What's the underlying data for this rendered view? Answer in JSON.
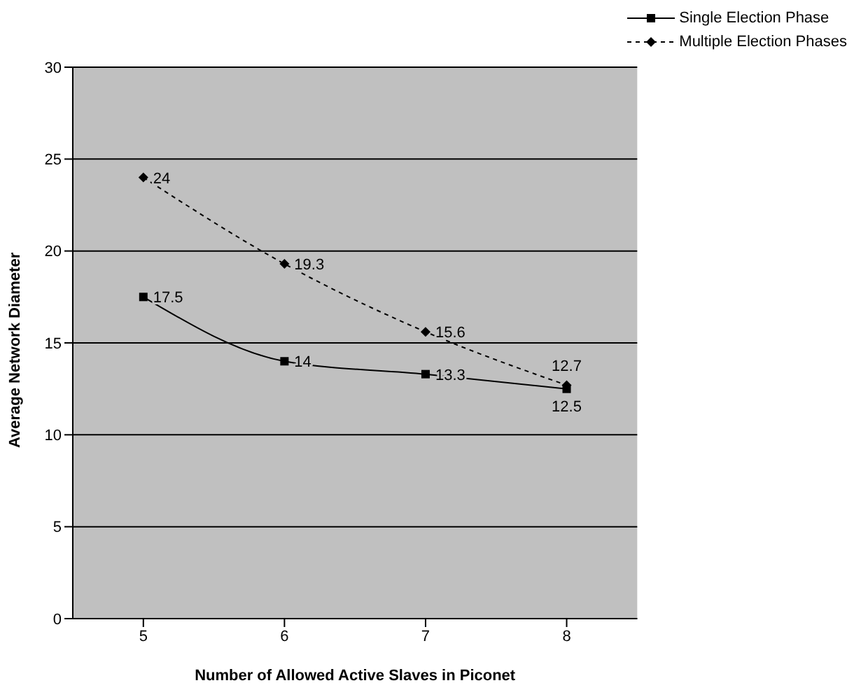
{
  "chart_data": {
    "type": "line",
    "xlabel": "Number of Allowed Active Slaves in Piconet",
    "ylabel": "Average Network Diameter",
    "categories": [
      "5",
      "6",
      "7",
      "8"
    ],
    "series": [
      {
        "name": "Single Election Phase",
        "color": "#000000",
        "values": [
          17.5,
          14,
          13.3,
          12.5
        ],
        "marker": "square",
        "line_style": "solid"
      },
      {
        "name": "Multiple Election Phases",
        "color": "#000000",
        "values": [
          24,
          19.3,
          15.6,
          12.7
        ],
        "marker": "diamond",
        "line_style": "dashed"
      }
    ],
    "ylim": [
      0,
      30
    ],
    "yticks": [
      0,
      5,
      10,
      15,
      20,
      25,
      30
    ],
    "grid": "y",
    "legend": "top right",
    "data_labels": true
  }
}
